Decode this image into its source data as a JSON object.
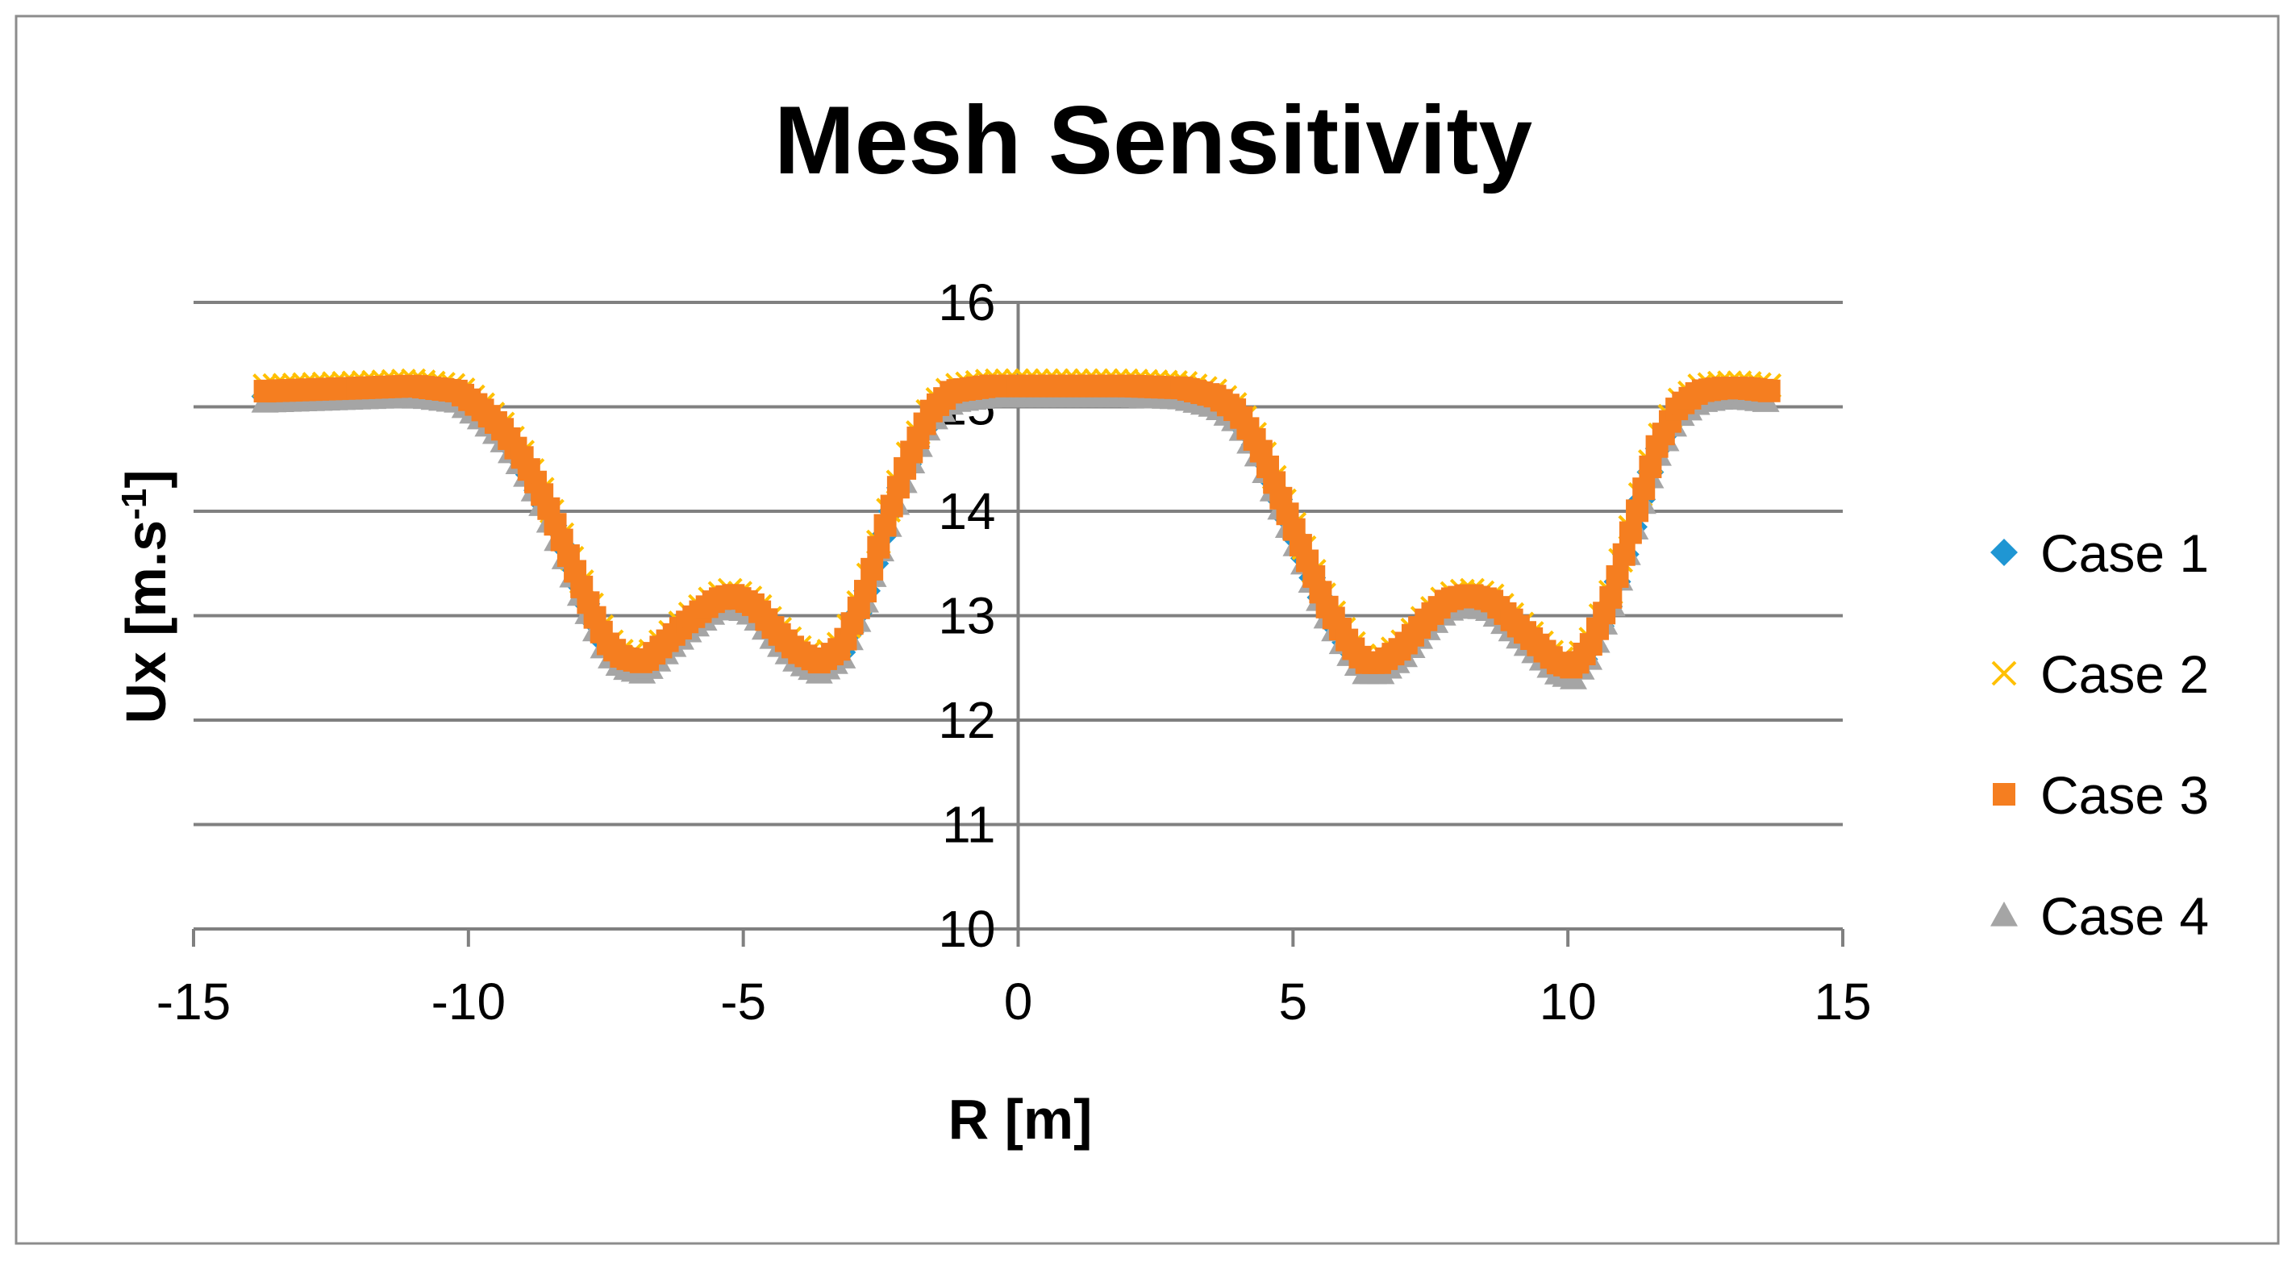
{
  "chart_data": {
    "type": "scatter",
    "title": "Mesh Sensitivity",
    "xlabel": "R [m]",
    "ylabel": "Ux [m.s",
    "ylabel_sup": "-1",
    "ylabel_end": "]",
    "xlim": [
      -15,
      15
    ],
    "ylim": [
      10,
      16
    ],
    "xticks": [
      -15,
      -10,
      -5,
      0,
      5,
      10,
      15
    ],
    "yticks": [
      10,
      11,
      12,
      13,
      14,
      15,
      16
    ],
    "xtick_labels": [
      "-15",
      "-10",
      "-5",
      "0",
      "5",
      "10",
      "15"
    ],
    "ytick_labels": [
      "10",
      "11",
      "12",
      "13",
      "14",
      "15",
      "16"
    ],
    "grid": "horizontal",
    "legend_position": "right",
    "profile_points": {
      "x": [
        -13.7,
        -12,
        -11,
        -10.2,
        -9.8,
        -9.4,
        -9.0,
        -8.6,
        -8.2,
        -7.8,
        -7.5,
        -7.2,
        -6.8,
        -6.5,
        -6.0,
        -5.5,
        -5.2,
        -4.8,
        -4.4,
        -4.0,
        -3.6,
        -3.2,
        -2.8,
        -2.4,
        -2.0,
        -1.6,
        -1.2,
        -0.5,
        0,
        0.5,
        1,
        2,
        3,
        3.6,
        4.0,
        4.4,
        4.8,
        5.2,
        5.6,
        6.0,
        6.3,
        6.6,
        7.0,
        7.4,
        7.8,
        8.2,
        8.6,
        9.0,
        9.4,
        9.8,
        10.1,
        10.4,
        10.8,
        11.2,
        11.6,
        12.0,
        12.4,
        12.8,
        13.2,
        13.7
      ],
      "y": [
        15.15,
        15.18,
        15.2,
        15.15,
        15.0,
        14.8,
        14.5,
        14.1,
        13.6,
        13.1,
        12.75,
        12.6,
        12.55,
        12.7,
        12.95,
        13.15,
        13.2,
        13.1,
        12.85,
        12.65,
        12.55,
        12.7,
        13.2,
        13.9,
        14.5,
        14.95,
        15.15,
        15.2,
        15.2,
        15.2,
        15.2,
        15.2,
        15.18,
        15.1,
        14.95,
        14.6,
        14.1,
        13.6,
        13.1,
        12.75,
        12.55,
        12.55,
        12.7,
        12.95,
        13.15,
        13.2,
        13.15,
        12.95,
        12.75,
        12.55,
        12.5,
        12.7,
        13.2,
        13.9,
        14.6,
        15.0,
        15.15,
        15.18,
        15.18,
        15.15
      ]
    },
    "series": [
      {
        "name": "Case 1",
        "marker": "diamond",
        "color": "#1F96D3",
        "y_offset": -0.05,
        "x_step": 0.15
      },
      {
        "name": "Case 2",
        "marker": "x",
        "color": "#FFC000",
        "y_offset": 0.05,
        "x_step": 0.18
      },
      {
        "name": "Case 3",
        "marker": "square",
        "color": "#F57E20",
        "y_offset": 0.0,
        "x_step": 0.12
      },
      {
        "name": "Case 4",
        "marker": "triangle",
        "color": "#A5A5A5",
        "y_offset": -0.1,
        "x_step": 0.14
      }
    ]
  },
  "colors": {
    "grid": "#808080",
    "axis": "#808080",
    "text": "#000000",
    "border": "#8c8c8c",
    "background": "#ffffff"
  }
}
